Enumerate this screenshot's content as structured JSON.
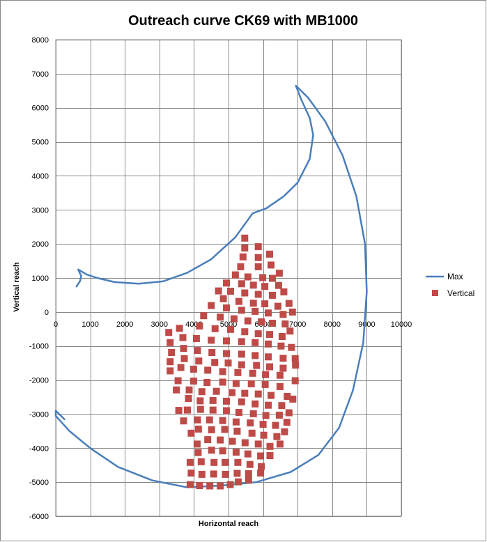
{
  "chart_data": {
    "type": "scatter",
    "title": "Outreach curve CK69 with MB1000",
    "xlabel": "Horizontal reach",
    "ylabel": "Vertical reach",
    "xlim": [
      0,
      10000
    ],
    "ylim": [
      -6000,
      8000
    ],
    "x_ticks": [
      0,
      1000,
      2000,
      3000,
      4000,
      5000,
      6000,
      7000,
      8000,
      9000,
      10000
    ],
    "y_ticks": [
      8000,
      7000,
      6000,
      5000,
      4000,
      3000,
      2000,
      1000,
      0,
      -1000,
      -2000,
      -3000,
      -4000,
      -5000,
      -6000
    ],
    "grid": true,
    "legend_position": "right",
    "colors": {
      "max": "#4a7ebb",
      "vertical": "#be4b48",
      "grid": "#888888"
    },
    "series": [
      {
        "name": "Max",
        "kind": "line",
        "points": [
          [
            600,
            750
          ],
          [
            700,
            900
          ],
          [
            740,
            1050
          ],
          [
            650,
            1250
          ],
          [
            900,
            1100
          ],
          [
            1200,
            1000
          ],
          [
            1700,
            880
          ],
          [
            2400,
            830
          ],
          [
            3100,
            900
          ],
          [
            3800,
            1150
          ],
          [
            4500,
            1550
          ],
          [
            5200,
            2200
          ],
          [
            5700,
            2900
          ],
          [
            6100,
            3050
          ],
          [
            6600,
            3400
          ],
          [
            7000,
            3800
          ],
          [
            7350,
            4500
          ],
          [
            7450,
            5200
          ],
          [
            7350,
            5700
          ],
          [
            7100,
            6250
          ],
          [
            6950,
            6650
          ],
          [
            7300,
            6300
          ],
          [
            7800,
            5600
          ],
          [
            8300,
            4600
          ],
          [
            8700,
            3400
          ],
          [
            8950,
            2000
          ],
          [
            9000,
            600
          ],
          [
            8900,
            -900
          ],
          [
            8600,
            -2300
          ],
          [
            8200,
            -3400
          ],
          [
            7600,
            -4200
          ],
          [
            6800,
            -4700
          ],
          [
            5800,
            -5000
          ],
          [
            4800,
            -5100
          ],
          [
            3800,
            -5150
          ],
          [
            2800,
            -4950
          ],
          [
            1800,
            -4550
          ],
          [
            1000,
            -4000
          ],
          [
            400,
            -3500
          ],
          [
            0,
            -3050
          ],
          [
            0,
            -2900
          ],
          [
            250,
            -3150
          ]
        ]
      },
      {
        "name": "Vertical",
        "kind": "markers",
        "points": [
          [
            5470,
            2170
          ],
          [
            5470,
            1880
          ],
          [
            5860,
            1920
          ],
          [
            6190,
            1700
          ],
          [
            5420,
            1620
          ],
          [
            5860,
            1600
          ],
          [
            5350,
            1330
          ],
          [
            5860,
            1330
          ],
          [
            6230,
            1380
          ],
          [
            6470,
            1140
          ],
          [
            5200,
            1090
          ],
          [
            5560,
            1030
          ],
          [
            5990,
            1010
          ],
          [
            6270,
            990
          ],
          [
            4940,
            850
          ],
          [
            5380,
            830
          ],
          [
            5720,
            790
          ],
          [
            6050,
            750
          ],
          [
            6450,
            780
          ],
          [
            4710,
            620
          ],
          [
            5060,
            610
          ],
          [
            5470,
            560
          ],
          [
            5860,
            520
          ],
          [
            6270,
            490
          ],
          [
            6600,
            590
          ],
          [
            4850,
            390
          ],
          [
            5300,
            310
          ],
          [
            5720,
            260
          ],
          [
            6050,
            240
          ],
          [
            6430,
            170
          ],
          [
            6750,
            250
          ],
          [
            4500,
            190
          ],
          [
            4940,
            120
          ],
          [
            5380,
            50
          ],
          [
            5770,
            20
          ],
          [
            6150,
            -30
          ],
          [
            6580,
            -70
          ],
          [
            6850,
            0
          ],
          [
            4280,
            -110
          ],
          [
            4760,
            -150
          ],
          [
            5160,
            -200
          ],
          [
            5560,
            -260
          ],
          [
            5950,
            -290
          ],
          [
            6270,
            -330
          ],
          [
            6640,
            -350
          ],
          [
            3580,
            -480
          ],
          [
            4160,
            -410
          ],
          [
            4610,
            -490
          ],
          [
            5060,
            -510
          ],
          [
            5470,
            -580
          ],
          [
            5860,
            -640
          ],
          [
            6190,
            -660
          ],
          [
            6550,
            -720
          ],
          [
            6780,
            -560
          ],
          [
            3270,
            -600
          ],
          [
            3680,
            -750
          ],
          [
            4070,
            -780
          ],
          [
            4500,
            -830
          ],
          [
            4940,
            -850
          ],
          [
            5380,
            -870
          ],
          [
            5770,
            -900
          ],
          [
            6150,
            -940
          ],
          [
            6520,
            -1000
          ],
          [
            6820,
            -1040
          ],
          [
            3310,
            -900
          ],
          [
            3700,
            -1070
          ],
          [
            4100,
            -1130
          ],
          [
            4520,
            -1190
          ],
          [
            4940,
            -1220
          ],
          [
            5380,
            -1240
          ],
          [
            5770,
            -1280
          ],
          [
            6150,
            -1320
          ],
          [
            6580,
            -1360
          ],
          [
            6930,
            -1370
          ],
          [
            3350,
            -1190
          ],
          [
            3720,
            -1370
          ],
          [
            4140,
            -1440
          ],
          [
            4600,
            -1480
          ],
          [
            4990,
            -1500
          ],
          [
            5380,
            -1550
          ],
          [
            5810,
            -1570
          ],
          [
            6190,
            -1610
          ],
          [
            6580,
            -1650
          ],
          [
            6940,
            -1560
          ],
          [
            3310,
            -1460
          ],
          [
            3620,
            -1630
          ],
          [
            3990,
            -1680
          ],
          [
            4400,
            -1710
          ],
          [
            4830,
            -1750
          ],
          [
            5270,
            -1780
          ],
          [
            5700,
            -1800
          ],
          [
            6070,
            -1840
          ],
          [
            6490,
            -1860
          ],
          [
            6930,
            -2020
          ],
          [
            3310,
            -1730
          ],
          [
            3540,
            -2020
          ],
          [
            3990,
            -2030
          ],
          [
            4380,
            -2070
          ],
          [
            4830,
            -2060
          ],
          [
            5220,
            -2100
          ],
          [
            5660,
            -2110
          ],
          [
            6060,
            -2130
          ],
          [
            6490,
            -2190
          ],
          [
            3490,
            -2290
          ],
          [
            3860,
            -2290
          ],
          [
            4230,
            -2340
          ],
          [
            4650,
            -2330
          ],
          [
            5100,
            -2370
          ],
          [
            5470,
            -2390
          ],
          [
            5860,
            -2410
          ],
          [
            6230,
            -2450
          ],
          [
            6700,
            -2480
          ],
          [
            3560,
            -2890
          ],
          [
            3840,
            -2540
          ],
          [
            4180,
            -2610
          ],
          [
            4550,
            -2600
          ],
          [
            4940,
            -2620
          ],
          [
            5380,
            -2640
          ],
          [
            5770,
            -2700
          ],
          [
            6150,
            -2740
          ],
          [
            6540,
            -2750
          ],
          [
            6860,
            -2560
          ],
          [
            3810,
            -2880
          ],
          [
            4190,
            -2860
          ],
          [
            4550,
            -2880
          ],
          [
            4940,
            -2900
          ],
          [
            5300,
            -2950
          ],
          [
            5720,
            -2990
          ],
          [
            6080,
            -3040
          ],
          [
            6470,
            -3030
          ],
          [
            6750,
            -2960
          ],
          [
            3700,
            -3200
          ],
          [
            4100,
            -3170
          ],
          [
            4450,
            -3170
          ],
          [
            4830,
            -3190
          ],
          [
            5220,
            -3230
          ],
          [
            5630,
            -3260
          ],
          [
            6000,
            -3300
          ],
          [
            6360,
            -3330
          ],
          [
            6690,
            -3240
          ],
          [
            3920,
            -3560
          ],
          [
            4130,
            -3440
          ],
          [
            4510,
            -3460
          ],
          [
            4890,
            -3450
          ],
          [
            5250,
            -3500
          ],
          [
            5680,
            -3560
          ],
          [
            6020,
            -3620
          ],
          [
            6400,
            -3660
          ],
          [
            6620,
            -3520
          ],
          [
            4090,
            -3880
          ],
          [
            4400,
            -3750
          ],
          [
            4760,
            -3760
          ],
          [
            5110,
            -3800
          ],
          [
            5480,
            -3840
          ],
          [
            5860,
            -3880
          ],
          [
            6200,
            -3950
          ],
          [
            6490,
            -3880
          ],
          [
            4120,
            -4130
          ],
          [
            4510,
            -4060
          ],
          [
            4830,
            -4080
          ],
          [
            5220,
            -4120
          ],
          [
            5560,
            -4170
          ],
          [
            5930,
            -4230
          ],
          [
            6200,
            -4220
          ],
          [
            3890,
            -4420
          ],
          [
            4210,
            -4400
          ],
          [
            4580,
            -4420
          ],
          [
            4900,
            -4420
          ],
          [
            5270,
            -4420
          ],
          [
            5620,
            -4480
          ],
          [
            5950,
            -4540
          ],
          [
            3920,
            -4730
          ],
          [
            4230,
            -4770
          ],
          [
            4570,
            -4760
          ],
          [
            4910,
            -4770
          ],
          [
            5250,
            -4740
          ],
          [
            5580,
            -4750
          ],
          [
            5930,
            -4730
          ],
          [
            3890,
            -5070
          ],
          [
            4160,
            -5100
          ],
          [
            4460,
            -5110
          ],
          [
            4760,
            -5110
          ],
          [
            5050,
            -5070
          ],
          [
            5280,
            -4990
          ],
          [
            5580,
            -4940
          ]
        ]
      }
    ]
  }
}
